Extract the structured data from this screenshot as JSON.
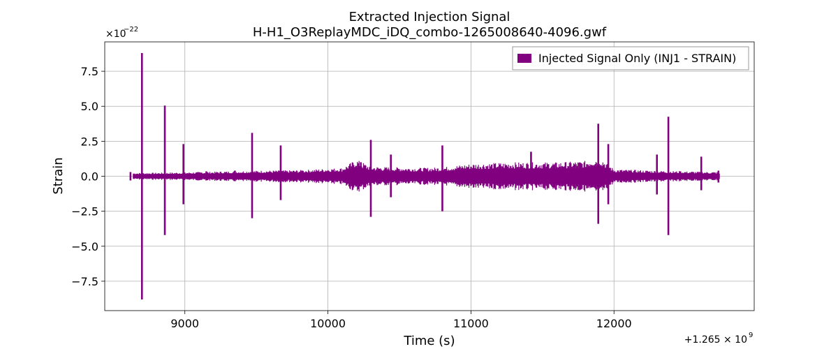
{
  "chart_data": {
    "type": "line",
    "title_line1": "Extracted Injection Signal",
    "title_line2": "H-H1_O3ReplayMDC_iDQ_combo-1265008640-4096.gwf",
    "xlabel": "Time (s)",
    "ylabel": "Strain",
    "y_multiplier_label": "×10",
    "y_multiplier_exp": "−22",
    "x_offset_label": "+1.265 × 10",
    "x_offset_exp": "9",
    "xlim": [
      8440,
      12980
    ],
    "ylim": [
      -9.6,
      9.6
    ],
    "x_ticks": [
      9000,
      10000,
      11000,
      12000
    ],
    "x_tick_labels": [
      "9000",
      "10000",
      "11000",
      "12000"
    ],
    "y_ticks": [
      -7.5,
      -5.0,
      -2.5,
      0.0,
      2.5,
      5.0,
      7.5
    ],
    "y_tick_labels": [
      "−7.5",
      "−5.0",
      "−2.5",
      "0.0",
      "2.5",
      "5.0",
      "7.5"
    ],
    "grid": true,
    "legend_position": "top-right",
    "series": [
      {
        "name": "Injected Signal Only (INJ1 - STRAIN)",
        "color": "#800080",
        "x_range": [
          8640,
          12736
        ],
        "baseline_envelope": [
          [
            8640,
            0.12
          ],
          [
            8700,
            0.12
          ],
          [
            9000,
            0.14
          ],
          [
            9500,
            0.2
          ],
          [
            9800,
            0.22
          ],
          [
            10100,
            0.3
          ],
          [
            10200,
            0.6
          ],
          [
            10300,
            0.35
          ],
          [
            10600,
            0.3
          ],
          [
            10800,
            0.32
          ],
          [
            11000,
            0.45
          ],
          [
            11300,
            0.5
          ],
          [
            11600,
            0.5
          ],
          [
            11800,
            0.55
          ],
          [
            11900,
            0.7
          ],
          [
            12000,
            0.25
          ],
          [
            12300,
            0.2
          ],
          [
            12736,
            0.15
          ]
        ],
        "spikes": [
          {
            "x": 8700,
            "max": 8.8,
            "min": -8.8
          },
          {
            "x": 8860,
            "max": 5.05,
            "min": -4.2
          },
          {
            "x": 8990,
            "max": 2.3,
            "min": -2.0
          },
          {
            "x": 9470,
            "max": 3.1,
            "min": -3.0
          },
          {
            "x": 9670,
            "max": 2.2,
            "min": -1.7
          },
          {
            "x": 10300,
            "max": 2.6,
            "min": -2.9
          },
          {
            "x": 10440,
            "max": 1.55,
            "min": -1.5
          },
          {
            "x": 10800,
            "max": 2.2,
            "min": -2.5
          },
          {
            "x": 11420,
            "max": 1.75,
            "min": -0.5
          },
          {
            "x": 11890,
            "max": 3.75,
            "min": -3.4
          },
          {
            "x": 11960,
            "max": 2.3,
            "min": -2.0
          },
          {
            "x": 12300,
            "max": 1.55,
            "min": -1.3
          },
          {
            "x": 12380,
            "max": 4.25,
            "min": -4.2
          },
          {
            "x": 12610,
            "max": 1.4,
            "min": -1.0
          },
          {
            "x": 8620,
            "max": 0.3,
            "min": -0.3
          },
          {
            "x": 9150,
            "max": 0.35,
            "min": -0.3
          },
          {
            "x": 9350,
            "max": 0.4,
            "min": -0.35
          },
          {
            "x": 9820,
            "max": 0.4,
            "min": -0.35
          },
          {
            "x": 10030,
            "max": 0.45,
            "min": -0.4
          },
          {
            "x": 10230,
            "max": 1.0,
            "min": -0.5
          },
          {
            "x": 10640,
            "max": 0.5,
            "min": -0.45
          },
          {
            "x": 10980,
            "max": 0.5,
            "min": -0.4
          },
          {
            "x": 11100,
            "max": 0.45,
            "min": -0.4
          },
          {
            "x": 11290,
            "max": 0.5,
            "min": -0.45
          },
          {
            "x": 11650,
            "max": 0.6,
            "min": -0.5
          },
          {
            "x": 12120,
            "max": 0.35,
            "min": -0.3
          },
          {
            "x": 12460,
            "max": 0.35,
            "min": -0.3
          },
          {
            "x": 12730,
            "max": 0.4,
            "min": -0.45
          }
        ]
      }
    ]
  }
}
